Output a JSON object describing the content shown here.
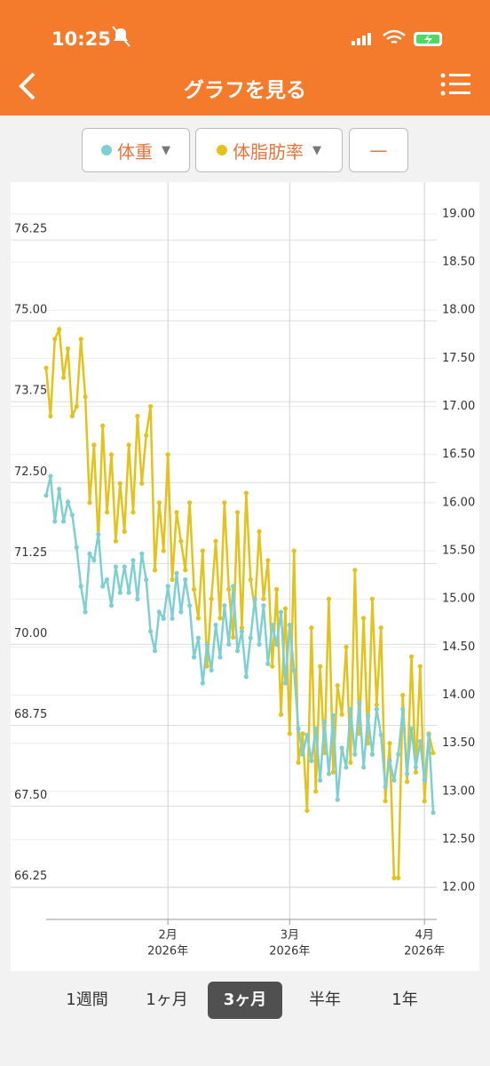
{
  "status_bar": {
    "time": "10:25"
  },
  "header": {
    "title": "グラフを見る"
  },
  "toolbar": {
    "buttons": [
      "体重",
      "体脂肪率",
      "—"
    ]
  },
  "chart_data": {
    "type": "line",
    "xlim": [
      0,
      89
    ],
    "xticks": [
      {
        "value": 28,
        "label": "2月",
        "year": "2026年"
      },
      {
        "value": 56,
        "label": "3月",
        "year": "2026年"
      },
      {
        "value": 87,
        "label": "4月",
        "year": "2026年"
      }
    ],
    "ylim": [
      65.75,
      76.8
    ],
    "yticks": [
      {
        "value": 66.25,
        "label": "66.25"
      },
      {
        "value": 67.5,
        "label": "67.50"
      },
      {
        "value": 68.75,
        "label": "68.75"
      },
      {
        "value": 70,
        "label": "70.00"
      },
      {
        "value": 71.25,
        "label": "71.25"
      },
      {
        "value": 72.5,
        "label": "72.50"
      },
      {
        "value": 73.75,
        "label": "73.75"
      },
      {
        "value": 75,
        "label": "75.00"
      },
      {
        "value": 76.25,
        "label": "76.25"
      }
    ],
    "y2lim": [
      11.67,
      19.1
    ],
    "y2ticks": [
      {
        "value": 12,
        "label": "12.00"
      },
      {
        "value": 12.5,
        "label": "12.50"
      },
      {
        "value": 13,
        "label": "13.00"
      },
      {
        "value": 13.5,
        "label": "13.50"
      },
      {
        "value": 14,
        "label": "14.00"
      },
      {
        "value": 14.5,
        "label": "14.50"
      },
      {
        "value": 15,
        "label": "15.00"
      },
      {
        "value": 15.5,
        "label": "15.50"
      },
      {
        "value": 16,
        "label": "16.00"
      },
      {
        "value": 16.5,
        "label": "16.50"
      },
      {
        "value": 17,
        "label": "17.00"
      },
      {
        "value": 17.5,
        "label": "17.50"
      },
      {
        "value": 18,
        "label": "18.00"
      },
      {
        "value": 18.5,
        "label": "18.50"
      },
      {
        "value": 19,
        "label": "19.00"
      }
    ],
    "grid": true,
    "series": [
      {
        "name": "体重",
        "color": "#7ecfd1",
        "values": [
          72.3,
          72.6,
          71.9,
          72.4,
          71.9,
          72.2,
          72.0,
          71.5,
          70.9,
          70.5,
          71.4,
          71.3,
          71.7,
          70.9,
          71.0,
          70.6,
          71.2,
          70.8,
          71.2,
          70.8,
          71.3,
          70.7,
          71.4,
          71.0,
          70.2,
          69.9,
          70.5,
          70.4,
          70.9,
          70.4,
          71.1,
          70.5,
          71.0,
          70.6,
          69.8,
          70.1,
          69.4,
          70.0,
          69.6,
          70.3,
          69.8,
          70.6,
          70.0,
          70.9,
          69.9,
          70.2,
          69.5,
          70.1,
          70.7,
          70.0,
          70.6,
          69.7,
          70.3,
          70.0,
          70.5,
          69.4,
          70.3,
          69.6,
          68.7,
          68.3,
          68.6,
          68.2,
          68.7,
          67.9,
          68.8,
          68.0,
          68.9,
          67.6,
          68.4,
          68.1,
          69.0,
          68.3,
          69.1,
          68.1,
          68.9,
          68.3,
          69.0,
          68.6,
          67.8,
          68.2,
          67.9,
          68.3,
          69.0,
          68.0,
          68.7,
          68.1,
          68.5,
          67.9,
          68.6,
          67.4
        ]
      },
      {
        "name": "体脂肪率",
        "color": "#e3c21c",
        "axis": "y2",
        "values": [
          17.4,
          16.9,
          17.7,
          17.8,
          17.3,
          17.6,
          16.9,
          17.0,
          17.7,
          17.1,
          16.0,
          16.6,
          15.6,
          16.8,
          15.9,
          16.5,
          15.6,
          16.2,
          15.7,
          16.6,
          15.9,
          16.9,
          16.2,
          16.7,
          17.0,
          15.3,
          16.0,
          15.5,
          16.5,
          15.2,
          15.9,
          15.6,
          15.3,
          16.0,
          15.1,
          14.8,
          15.5,
          14.3,
          15.0,
          15.6,
          14.8,
          16.0,
          15.1,
          14.6,
          15.9,
          14.7,
          16.1,
          15.2,
          14.9,
          15.7,
          15.0,
          15.4,
          14.3,
          15.1,
          13.8,
          14.9,
          13.6,
          15.5,
          13.3,
          13.6,
          12.8,
          14.7,
          13.0,
          14.3,
          13.4,
          15.0,
          13.2,
          14.1,
          13.8,
          14.5,
          13.3,
          15.3,
          13.6,
          14.8,
          13.5,
          15.0,
          13.9,
          14.7,
          12.9,
          13.5,
          12.1,
          12.1,
          14.0,
          13.1,
          14.4,
          13.2,
          14.3,
          12.9,
          13.6,
          13.4
        ]
      }
    ]
  },
  "tabs": {
    "items": [
      "1週間",
      "1ヶ月",
      "3ヶ月",
      "半年",
      "1年"
    ],
    "selected": 2
  }
}
